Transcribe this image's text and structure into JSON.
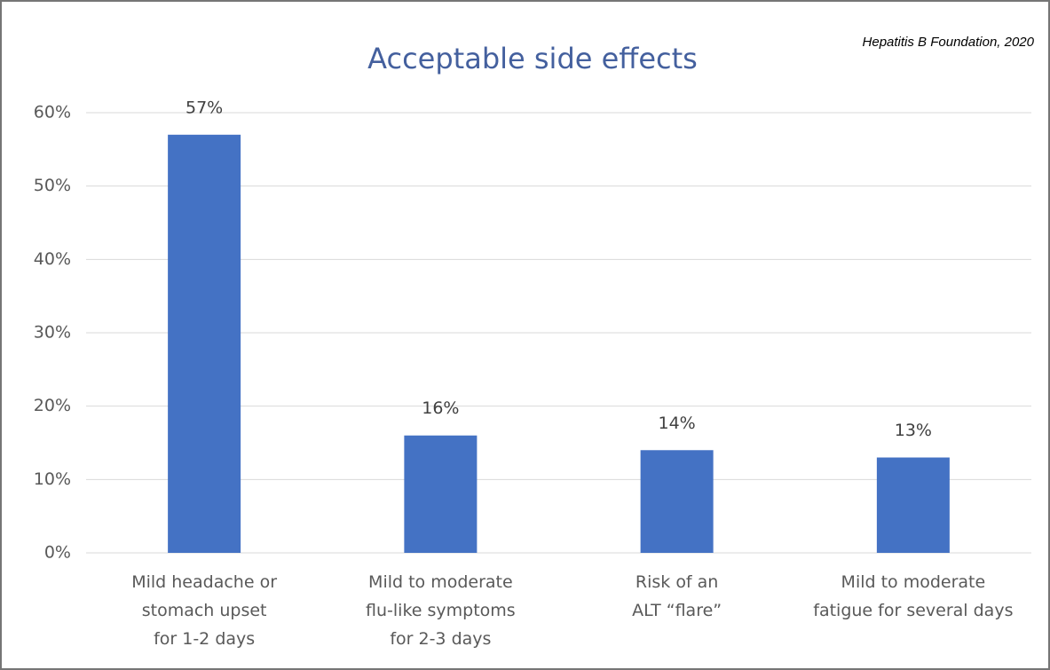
{
  "chart_data": {
    "type": "bar",
    "title": "Acceptable side effects",
    "annotations": [
      "Hepatitis B Foundation, 2020"
    ],
    "categories": [
      "Mild headache or\nstomach upset\nfor 1-2 days",
      "Mild to moderate\nflu-like symptoms\nfor 2-3 days",
      "Risk of an\nALT “flare”",
      "Mild to moderate\nfatigue for several days"
    ],
    "values": [
      57,
      16,
      14,
      13
    ],
    "value_labels": [
      "57%",
      "16%",
      "14%",
      "13%"
    ],
    "color": "#4472c4",
    "ylim": [
      0,
      60
    ],
    "yticks": [
      {
        "value": 0,
        "label": "0%"
      },
      {
        "value": 10,
        "label": "10%"
      },
      {
        "value": 20,
        "label": "20%"
      },
      {
        "value": 30,
        "label": "30%"
      },
      {
        "value": 40,
        "label": "40%"
      },
      {
        "value": 50,
        "label": "50%"
      },
      {
        "value": 60,
        "label": "60%"
      }
    ],
    "grid": true
  }
}
